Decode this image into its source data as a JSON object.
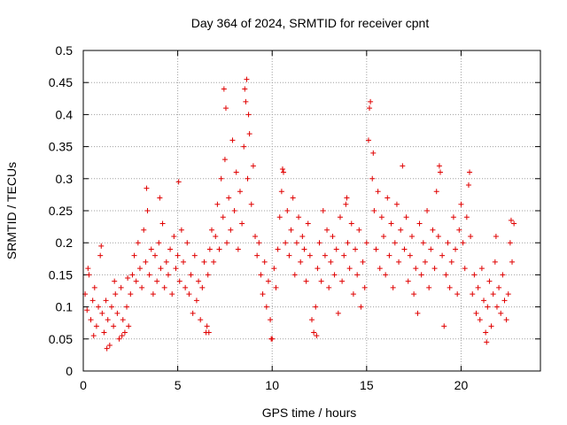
{
  "chart_data": {
    "type": "scatter",
    "title": "Day 364 of 2024, SRMTID for receiver cpnt",
    "xlabel": "GPS time / hours",
    "ylabel": "SRMTID / TECUs",
    "xlim": [
      0,
      24.2
    ],
    "ylim": [
      0,
      0.5
    ],
    "xticks": [
      0,
      5,
      10,
      15,
      20
    ],
    "xtick_labels": [
      "0",
      "5",
      "10",
      "15",
      "20"
    ],
    "yticks": [
      0,
      0.05,
      0.1,
      0.15,
      0.2,
      0.25,
      0.3,
      0.35,
      0.4,
      0.45,
      0.5
    ],
    "ytick_labels": [
      "0",
      "0.05",
      "0.1",
      "0.15",
      "0.2",
      "0.25",
      "0.3",
      "0.35",
      "0.4",
      "0.45",
      "0.5"
    ],
    "grid": true,
    "marker": "+",
    "marker_color": "#e00000",
    "series": [
      {
        "name": "SRMTID",
        "points": [
          [
            0.1,
            0.12
          ],
          [
            0.2,
            0.095
          ],
          [
            0.3,
            0.15
          ],
          [
            0.4,
            0.08
          ],
          [
            0.5,
            0.11
          ],
          [
            0.6,
            0.13
          ],
          [
            0.7,
            0.07
          ],
          [
            0.8,
            0.1
          ],
          [
            0.9,
            0.18
          ],
          [
            1.0,
            0.09
          ],
          [
            1.1,
            0.06
          ],
          [
            1.2,
            0.11
          ],
          [
            1.3,
            0.08
          ],
          [
            1.4,
            0.04
          ],
          [
            1.5,
            0.1
          ],
          [
            1.6,
            0.07
          ],
          [
            1.7,
            0.12
          ],
          [
            1.8,
            0.09
          ],
          [
            1.9,
            0.05
          ],
          [
            2.0,
            0.13
          ],
          [
            2.1,
            0.08
          ],
          [
            2.2,
            0.06
          ],
          [
            2.3,
            0.1
          ],
          [
            2.4,
            0.07
          ],
          [
            2.5,
            0.12
          ],
          [
            0.25,
            0.16
          ],
          [
            0.55,
            0.055
          ],
          [
            0.95,
            0.195
          ],
          [
            1.25,
            0.035
          ],
          [
            1.65,
            0.14
          ],
          [
            2.05,
            0.055
          ],
          [
            2.35,
            0.145
          ],
          [
            2.6,
            0.15
          ],
          [
            2.7,
            0.18
          ],
          [
            2.8,
            0.14
          ],
          [
            2.9,
            0.2
          ],
          [
            3.0,
            0.16
          ],
          [
            3.1,
            0.13
          ],
          [
            3.2,
            0.22
          ],
          [
            3.3,
            0.17
          ],
          [
            3.4,
            0.25
          ],
          [
            3.5,
            0.15
          ],
          [
            3.6,
            0.19
          ],
          [
            3.7,
            0.12
          ],
          [
            3.8,
            0.18
          ],
          [
            3.9,
            0.14
          ],
          [
            4.0,
            0.2
          ],
          [
            4.1,
            0.16
          ],
          [
            4.2,
            0.23
          ],
          [
            4.3,
            0.13
          ],
          [
            4.4,
            0.17
          ],
          [
            4.5,
            0.15
          ],
          [
            4.6,
            0.19
          ],
          [
            4.7,
            0.12
          ],
          [
            4.8,
            0.21
          ],
          [
            4.9,
            0.16
          ],
          [
            5.0,
            0.18
          ],
          [
            5.1,
            0.14
          ],
          [
            5.2,
            0.22
          ],
          [
            5.3,
            0.17
          ],
          [
            5.4,
            0.13
          ],
          [
            3.35,
            0.285
          ],
          [
            4.05,
            0.27
          ],
          [
            5.05,
            0.295
          ],
          [
            5.5,
            0.2
          ],
          [
            5.6,
            0.12
          ],
          [
            5.7,
            0.15
          ],
          [
            5.8,
            0.09
          ],
          [
            5.9,
            0.18
          ],
          [
            6.0,
            0.11
          ],
          [
            6.1,
            0.14
          ],
          [
            6.2,
            0.08
          ],
          [
            6.3,
            0.13
          ],
          [
            6.4,
            0.17
          ],
          [
            6.5,
            0.06
          ],
          [
            6.6,
            0.15
          ],
          [
            6.7,
            0.19
          ],
          [
            6.8,
            0.22
          ],
          [
            6.9,
            0.17
          ],
          [
            7.0,
            0.21
          ],
          [
            7.1,
            0.26
          ],
          [
            7.2,
            0.19
          ],
          [
            7.3,
            0.3
          ],
          [
            7.4,
            0.24
          ],
          [
            7.5,
            0.33
          ],
          [
            7.6,
            0.2
          ],
          [
            7.7,
            0.27
          ],
          [
            7.8,
            0.22
          ],
          [
            7.9,
            0.36
          ],
          [
            8.0,
            0.25
          ],
          [
            8.1,
            0.31
          ],
          [
            8.2,
            0.19
          ],
          [
            8.3,
            0.28
          ],
          [
            8.4,
            0.23
          ],
          [
            8.5,
            0.35
          ],
          [
            8.6,
            0.42
          ],
          [
            8.7,
            0.3
          ],
          [
            8.8,
            0.37
          ],
          [
            8.9,
            0.26
          ],
          [
            9.0,
            0.32
          ],
          [
            9.1,
            0.21
          ],
          [
            9.2,
            0.18
          ],
          [
            7.45,
            0.44
          ],
          [
            7.55,
            0.41
          ],
          [
            8.65,
            0.455
          ],
          [
            8.75,
            0.4
          ],
          [
            6.55,
            0.07
          ],
          [
            6.65,
            0.06
          ],
          [
            8.55,
            0.44
          ],
          [
            9.3,
            0.2
          ],
          [
            9.4,
            0.15
          ],
          [
            9.5,
            0.12
          ],
          [
            9.6,
            0.17
          ],
          [
            9.7,
            0.1
          ],
          [
            9.8,
            0.14
          ],
          [
            9.9,
            0.08
          ],
          [
            10.0,
            0.05
          ],
          [
            10.1,
            0.16
          ],
          [
            10.2,
            0.13
          ],
          [
            10.3,
            0.19
          ],
          [
            10.4,
            0.24
          ],
          [
            10.5,
            0.28
          ],
          [
            10.6,
            0.31
          ],
          [
            10.7,
            0.2
          ],
          [
            10.8,
            0.25
          ],
          [
            10.9,
            0.18
          ],
          [
            11.0,
            0.22
          ],
          [
            11.1,
            0.27
          ],
          [
            11.2,
            0.15
          ],
          [
            11.3,
            0.2
          ],
          [
            11.4,
            0.24
          ],
          [
            11.5,
            0.17
          ],
          [
            11.6,
            0.21
          ],
          [
            11.7,
            0.19
          ],
          [
            11.8,
            0.14
          ],
          [
            11.9,
            0.23
          ],
          [
            12.0,
            0.18
          ],
          [
            12.1,
            0.08
          ],
          [
            12.2,
            0.06
          ],
          [
            12.3,
            0.1
          ],
          [
            12.4,
            0.16
          ],
          [
            12.5,
            0.2
          ],
          [
            12.6,
            0.14
          ],
          [
            12.7,
            0.25
          ],
          [
            12.8,
            0.18
          ],
          [
            12.9,
            0.22
          ],
          [
            10.55,
            0.315
          ],
          [
            9.95,
            0.05
          ],
          [
            12.35,
            0.055
          ],
          [
            13.0,
            0.13
          ],
          [
            13.1,
            0.17
          ],
          [
            13.2,
            0.21
          ],
          [
            13.3,
            0.15
          ],
          [
            13.4,
            0.19
          ],
          [
            13.5,
            0.09
          ],
          [
            13.6,
            0.24
          ],
          [
            13.7,
            0.14
          ],
          [
            13.8,
            0.18
          ],
          [
            13.9,
            0.26
          ],
          [
            14.0,
            0.2
          ],
          [
            14.1,
            0.16
          ],
          [
            14.2,
            0.23
          ],
          [
            14.3,
            0.12
          ],
          [
            14.4,
            0.19
          ],
          [
            14.5,
            0.15
          ],
          [
            14.6,
            0.22
          ],
          [
            14.7,
            0.1
          ],
          [
            14.8,
            0.17
          ],
          [
            14.9,
            0.13
          ],
          [
            15.0,
            0.2
          ],
          [
            15.1,
            0.36
          ],
          [
            15.2,
            0.42
          ],
          [
            15.3,
            0.3
          ],
          [
            15.4,
            0.25
          ],
          [
            15.5,
            0.19
          ],
          [
            15.6,
            0.28
          ],
          [
            15.7,
            0.16
          ],
          [
            15.8,
            0.24
          ],
          [
            15.9,
            0.21
          ],
          [
            16.0,
            0.15
          ],
          [
            16.1,
            0.27
          ],
          [
            16.2,
            0.18
          ],
          [
            16.3,
            0.23
          ],
          [
            16.4,
            0.13
          ],
          [
            16.5,
            0.2
          ],
          [
            16.6,
            0.26
          ],
          [
            16.7,
            0.17
          ],
          [
            16.8,
            0.22
          ],
          [
            16.9,
            0.32
          ],
          [
            17.0,
            0.19
          ],
          [
            17.1,
            0.24
          ],
          [
            15.15,
            0.41
          ],
          [
            15.35,
            0.34
          ],
          [
            13.95,
            0.27
          ],
          [
            17.2,
            0.14
          ],
          [
            17.3,
            0.18
          ],
          [
            17.4,
            0.21
          ],
          [
            17.5,
            0.12
          ],
          [
            17.6,
            0.16
          ],
          [
            17.7,
            0.09
          ],
          [
            17.8,
            0.23
          ],
          [
            17.9,
            0.15
          ],
          [
            18.0,
            0.2
          ],
          [
            18.1,
            0.17
          ],
          [
            18.2,
            0.25
          ],
          [
            18.3,
            0.13
          ],
          [
            18.4,
            0.19
          ],
          [
            18.5,
            0.22
          ],
          [
            18.6,
            0.16
          ],
          [
            18.7,
            0.28
          ],
          [
            18.8,
            0.21
          ],
          [
            18.9,
            0.31
          ],
          [
            19.0,
            0.18
          ],
          [
            19.1,
            0.07
          ],
          [
            19.2,
            0.15
          ],
          [
            19.3,
            0.2
          ],
          [
            19.4,
            0.13
          ],
          [
            19.5,
            0.17
          ],
          [
            19.6,
            0.24
          ],
          [
            19.7,
            0.19
          ],
          [
            19.8,
            0.12
          ],
          [
            19.9,
            0.22
          ],
          [
            20.0,
            0.26
          ],
          [
            20.1,
            0.2
          ],
          [
            20.2,
            0.16
          ],
          [
            20.3,
            0.24
          ],
          [
            20.4,
            0.29
          ],
          [
            20.5,
            0.21
          ],
          [
            18.85,
            0.32
          ],
          [
            20.45,
            0.31
          ],
          [
            20.6,
            0.12
          ],
          [
            20.7,
            0.15
          ],
          [
            20.8,
            0.09
          ],
          [
            20.9,
            0.13
          ],
          [
            21.0,
            0.08
          ],
          [
            21.1,
            0.16
          ],
          [
            21.2,
            0.11
          ],
          [
            21.3,
            0.06
          ],
          [
            21.4,
            0.1
          ],
          [
            21.5,
            0.14
          ],
          [
            21.6,
            0.07
          ],
          [
            21.7,
            0.12
          ],
          [
            21.8,
            0.17
          ],
          [
            21.9,
            0.1
          ],
          [
            22.0,
            0.13
          ],
          [
            22.1,
            0.09
          ],
          [
            22.2,
            0.15
          ],
          [
            22.3,
            0.11
          ],
          [
            22.4,
            0.08
          ],
          [
            22.5,
            0.12
          ],
          [
            22.6,
            0.2
          ],
          [
            22.7,
            0.17
          ],
          [
            22.8,
            0.23
          ],
          [
            21.35,
            0.045
          ],
          [
            21.85,
            0.21
          ],
          [
            22.65,
            0.235
          ]
        ]
      }
    ]
  }
}
